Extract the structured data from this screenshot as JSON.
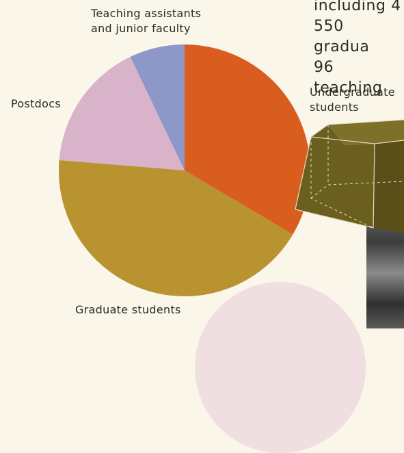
{
  "intro_text": "including 4\n550 gradua\n96 teaching",
  "chart_data": {
    "type": "pie",
    "start_angle_deg": 0,
    "direction": "clockwise",
    "slices": [
      {
        "label": "Undergraduate\nstudents",
        "value": 33.5,
        "color": "#d95d1e"
      },
      {
        "label": "Graduate students",
        "value": 42.8,
        "color": "#b8932f"
      },
      {
        "label": "Postdocs",
        "value": 16.6,
        "color": "#d9b3c9"
      },
      {
        "label": "Teaching assistants\nand junior faculty",
        "value": 7.1,
        "color": "#8e98c8"
      }
    ]
  }
}
